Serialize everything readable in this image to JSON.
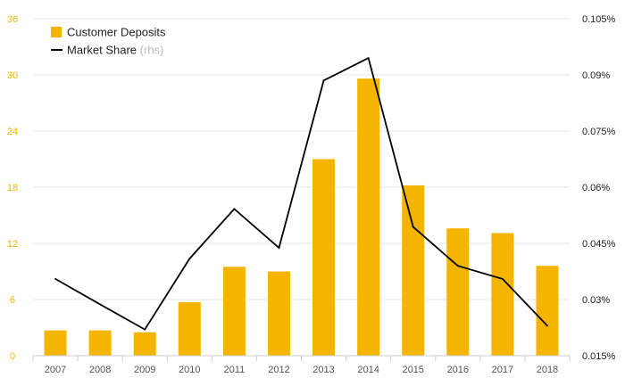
{
  "chart_data": {
    "type": "bar",
    "categories": [
      "2007",
      "2008",
      "2009",
      "2010",
      "2011",
      "2012",
      "2013",
      "2014",
      "2015",
      "2016",
      "2017",
      "2018"
    ],
    "series": [
      {
        "name": "Customer Deposits",
        "kind": "bar",
        "axis": "left",
        "color": "#f5b400",
        "values": [
          2.7,
          2.7,
          2.5,
          5.7,
          9.5,
          9.0,
          21.0,
          29.6,
          18.2,
          13.6,
          13.1,
          9.6
        ]
      },
      {
        "name": "Market Share",
        "kind": "line",
        "axis": "right",
        "color": "#000000",
        "values": [
          0.0355,
          0.0287,
          0.022,
          0.0409,
          0.0542,
          0.0438,
          0.0885,
          0.0945,
          0.0494,
          0.039,
          0.0355,
          0.023
        ]
      }
    ],
    "legend": {
      "placement": "top-left",
      "items": [
        {
          "label": "Customer Deposits",
          "note": "",
          "swatch": "box",
          "color": "#f5b400"
        },
        {
          "label": "Market Share",
          "note": "(rhs)",
          "swatch": "line",
          "color": "#000000"
        }
      ]
    },
    "left_axis": {
      "ylim": [
        0,
        36
      ],
      "ticks": [
        0,
        6,
        12,
        18,
        24,
        30,
        36
      ],
      "tick_labels": [
        "0",
        "6",
        "12",
        "18",
        "24",
        "30",
        "36"
      ],
      "color": "#f5b400"
    },
    "right_axis": {
      "ylim": [
        0.015,
        0.105
      ],
      "ticks": [
        0.015,
        0.03,
        0.045,
        0.06,
        0.075,
        0.09,
        0.105
      ],
      "tick_labels": [
        "0.015%",
        "0.03%",
        "0.045%",
        "0.06%",
        "0.075%",
        "0.09%",
        "0.105%"
      ]
    },
    "grid": true,
    "title": "",
    "xlabel": "",
    "ylabel": ""
  }
}
